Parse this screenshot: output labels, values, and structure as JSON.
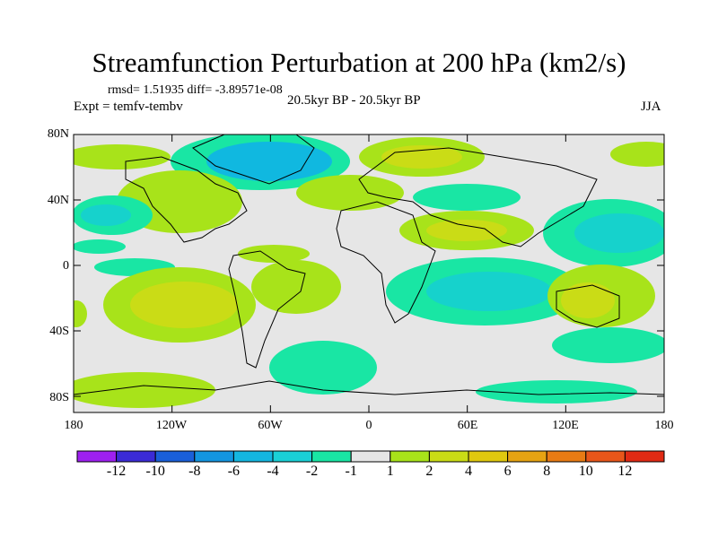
{
  "title": "Streamfunction Perturbation at 200 hPa (km2/s)",
  "stats": "rmsd= 1.51935  diff= -3.89571e-08",
  "expt": "Expt = temfv-tembv",
  "subtitle": "20.5kyr BP - 20.5kyr BP",
  "season": "JJA",
  "y_labels": [
    "80N",
    "40N",
    "0",
    "40S",
    "80S"
  ],
  "x_labels": [
    "180",
    "120W",
    "60W",
    "0",
    "60E",
    "120E",
    "180"
  ],
  "colorbar": {
    "labels": [
      "-12",
      "-10",
      "-8",
      "-6",
      "-4",
      "-2",
      "-1",
      "1",
      "2",
      "4",
      "6",
      "8",
      "10",
      "12"
    ],
    "colors": [
      "#9e20f0",
      "#3b2bd6",
      "#1a5fd9",
      "#1395e0",
      "#14b6e0",
      "#1ad0d6",
      "#19e6a4",
      "#e6e6e6",
      "#a8e31a",
      "#cadc16",
      "#e0c80f",
      "#e6a312",
      "#e87b14",
      "#e8561a",
      "#e02a14"
    ]
  },
  "colors": {
    "land_bg": "#e6e6e6",
    "neg1": "#19e6a4",
    "neg2": "#16d2cc",
    "neg3": "#10b8e0",
    "pos1": "#a8e31a",
    "pos2": "#cadc16",
    "pos3": "#e0c80f"
  }
}
